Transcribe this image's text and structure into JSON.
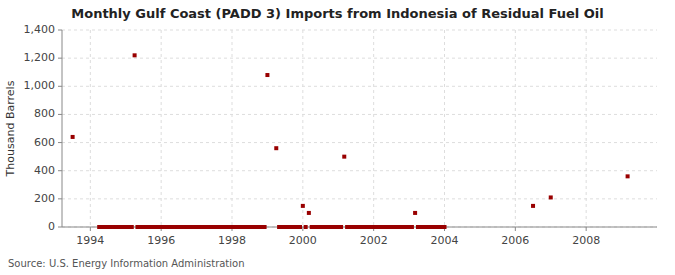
{
  "chart_data": {
    "type": "scatter",
    "title": "Monthly Gulf Coast (PADD 3) Imports from Indonesia of Residual Fuel Oil",
    "ylabel": "Thousand Barrels",
    "annotations": [
      "Source: U.S. Energy Information Administration"
    ],
    "color": "#990000",
    "marker": "square",
    "grid": true,
    "xlim": [
      1993.2,
      2010.0
    ],
    "ylim": [
      0,
      1400
    ],
    "xticks": [
      1994,
      1996,
      1998,
      2000,
      2002,
      2004,
      2006,
      2008
    ],
    "yticks": [
      0,
      200,
      400,
      600,
      800,
      {
        "value": 1000,
        "label": "1,000"
      },
      {
        "value": 1200,
        "label": "1,200"
      },
      {
        "value": 1400,
        "label": "1,400"
      }
    ],
    "x": [
      1993.5,
      1994.25,
      1994.33,
      1994.42,
      1994.5,
      1994.58,
      1994.67,
      1994.75,
      1994.83,
      1994.92,
      1995.0,
      1995.08,
      1995.17,
      1995.25,
      1995.33,
      1995.42,
      1995.5,
      1995.58,
      1995.67,
      1995.75,
      1995.83,
      1995.92,
      1996.0,
      1996.08,
      1996.17,
      1996.25,
      1996.33,
      1996.42,
      1996.5,
      1996.58,
      1996.67,
      1996.75,
      1996.83,
      1996.92,
      1997.0,
      1997.08,
      1997.17,
      1997.25,
      1997.33,
      1997.42,
      1997.5,
      1997.58,
      1997.67,
      1997.75,
      1997.83,
      1997.92,
      1998.0,
      1998.08,
      1998.17,
      1998.25,
      1998.33,
      1998.42,
      1998.5,
      1998.58,
      1998.67,
      1998.75,
      1998.83,
      1998.92,
      1999.0,
      1999.25,
      1999.33,
      1999.42,
      1999.5,
      1999.58,
      1999.67,
      1999.75,
      1999.83,
      1999.92,
      2000.0,
      2000.08,
      2000.17,
      2000.25,
      2000.33,
      2000.42,
      2000.5,
      2000.58,
      2000.67,
      2000.75,
      2000.83,
      2000.92,
      2001.0,
      2001.08,
      2001.17,
      2001.25,
      2001.33,
      2001.42,
      2001.5,
      2001.58,
      2001.67,
      2001.75,
      2001.83,
      2001.92,
      2002.0,
      2002.08,
      2002.17,
      2002.25,
      2002.33,
      2002.42,
      2002.5,
      2002.58,
      2002.67,
      2002.75,
      2002.83,
      2002.92,
      2003.0,
      2003.08,
      2003.17,
      2003.25,
      2003.33,
      2003.42,
      2003.5,
      2003.58,
      2003.67,
      2003.75,
      2003.83,
      2003.92,
      2004.0,
      2006.5,
      2007.0,
      2009.17
    ],
    "values": [
      640,
      0,
      0,
      0,
      0,
      0,
      0,
      0,
      0,
      0,
      0,
      0,
      0,
      1220,
      0,
      0,
      0,
      0,
      0,
      0,
      0,
      0,
      0,
      0,
      0,
      0,
      0,
      0,
      0,
      0,
      0,
      0,
      0,
      0,
      0,
      0,
      0,
      0,
      0,
      0,
      0,
      0,
      0,
      0,
      0,
      0,
      0,
      0,
      0,
      0,
      0,
      0,
      0,
      0,
      0,
      0,
      0,
      0,
      1080,
      560,
      0,
      0,
      0,
      0,
      0,
      0,
      0,
      0,
      150,
      0,
      100,
      0,
      0,
      0,
      0,
      0,
      0,
      0,
      0,
      0,
      0,
      0,
      500,
      0,
      0,
      0,
      0,
      0,
      0,
      0,
      0,
      0,
      0,
      0,
      0,
      0,
      0,
      0,
      0,
      0,
      0,
      0,
      0,
      0,
      0,
      0,
      100,
      0,
      0,
      0,
      0,
      0,
      0,
      0,
      0,
      0,
      0,
      150,
      210,
      360
    ]
  }
}
